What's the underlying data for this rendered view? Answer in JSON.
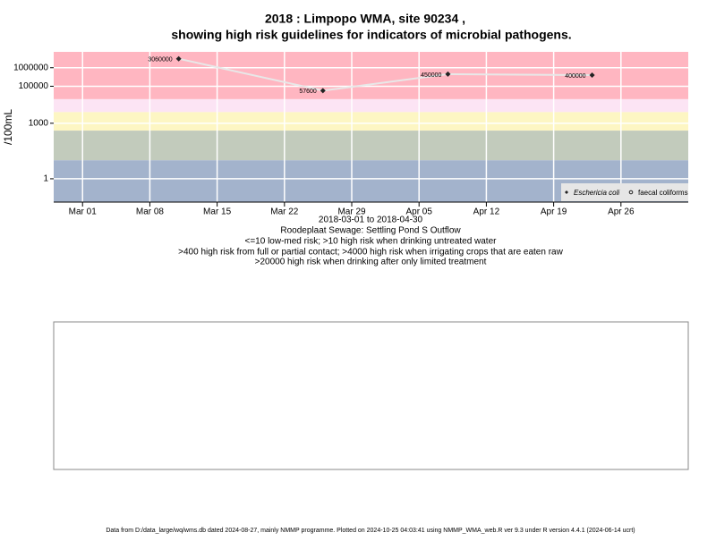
{
  "chart_data": {
    "type": "line",
    "title": "2018 : Limpopo WMA, site 90234 ,",
    "subtitle": "showing high risk guidelines for indicators of microbial pathogens.",
    "y_label": "/100mL",
    "log_y": true,
    "grid": true,
    "legend_position": "bottom-right",
    "xlim": [
      "2018-02-26",
      "2018-05-03"
    ],
    "ylim": [
      0.055,
      7200000
    ],
    "xticks": [
      {
        "value": "2018-03-01",
        "label": "Mar 01"
      },
      {
        "value": "2018-03-08",
        "label": "Mar 08"
      },
      {
        "value": "2018-03-15",
        "label": "Mar 15"
      },
      {
        "value": "2018-03-22",
        "label": "Mar 22"
      },
      {
        "value": "2018-03-29",
        "label": "Mar 29"
      },
      {
        "value": "2018-04-05",
        "label": "Apr 05"
      },
      {
        "value": "2018-04-12",
        "label": "Apr 12"
      },
      {
        "value": "2018-04-19",
        "label": "Apr 19"
      },
      {
        "value": "2018-04-26",
        "label": "Apr 26"
      }
    ],
    "yticks": [
      1,
      1000,
      100000,
      1000000
    ],
    "bands": [
      {
        "from": 20000,
        "to": 7200000,
        "color": "#ffb6c1"
      },
      {
        "from": 4000,
        "to": 20000,
        "color": "#fce4f4"
      },
      {
        "from": 400,
        "to": 4000,
        "color": "#fdf6c3"
      },
      {
        "from": 10,
        "to": 400,
        "color": "#c2cbbc"
      },
      {
        "from": 0.055,
        "to": 10,
        "color": "#a3b3cc"
      }
    ],
    "x": [
      "2018-03-11",
      "2018-03-26",
      "2018-04-08",
      "2018-04-23"
    ],
    "series": [
      {
        "name": "Eschericia coli",
        "color": "#222222",
        "marker": "diamond",
        "values": [
          3060000,
          57600,
          450000,
          400000
        ]
      },
      {
        "name": "faecal coliforms",
        "color": "#222222",
        "marker": "circle",
        "values": [
          null,
          null,
          null,
          null
        ]
      }
    ],
    "date_range": "2018-03-01 to 2018-04-30",
    "notes": [
      "Roodeplaat Sewage: Settling Pond S Outflow",
      "<=10 low-med risk; >10 high risk when drinking untreated water",
      ">400 high risk from full or partial contact; >4000 high risk when irrigating crops that are eaten raw",
      ">20000 high risk when drinking after only limited treatment"
    ],
    "footer": "Data from D:/data_large/wq/wms.db dated 2024-08-27, mainly NMMP programme. Plotted on 2024-10-25 04:03:41 using NMMP_WMA_web.R ver 9.3 under R version 4.4.1 (2024-06-14 ucrt)"
  }
}
